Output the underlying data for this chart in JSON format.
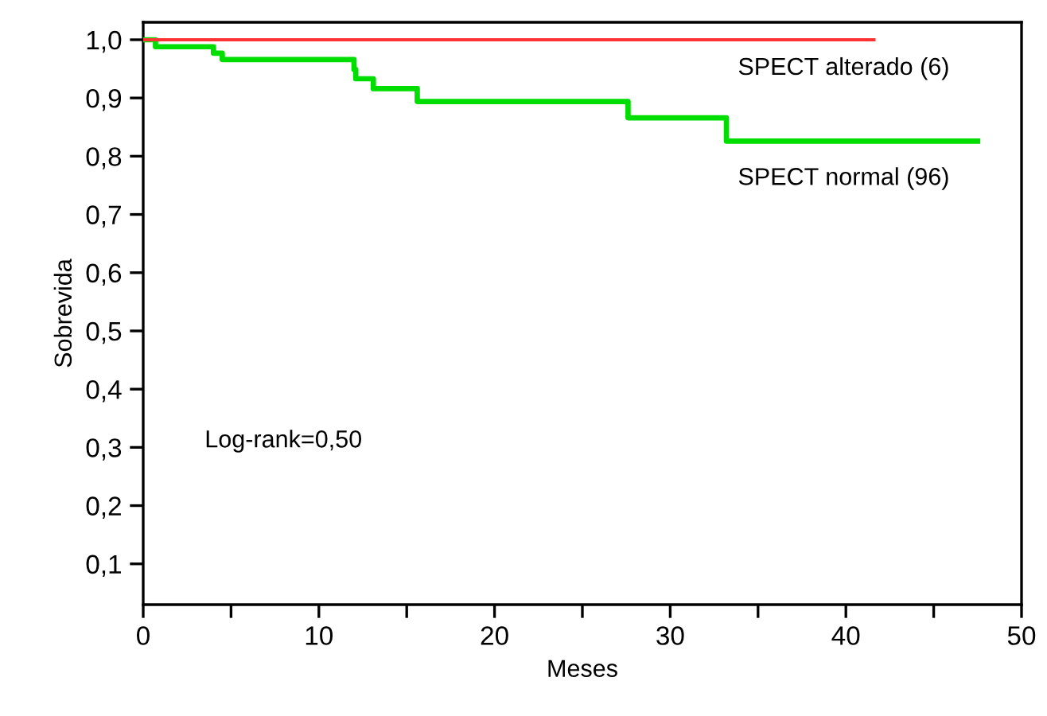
{
  "chart_data": {
    "type": "step",
    "xlabel": "Meses",
    "ylabel": "Sobrevida",
    "series": [
      {
        "name": "SPECT alterado (6)",
        "color": "#ff3333",
        "x": [
          0,
          41.6
        ],
        "values": [
          1.0,
          1.0
        ]
      },
      {
        "name": "SPECT normal (96)",
        "color": "#00dd00",
        "x": [
          0,
          0.7,
          4.0,
          4.5,
          12.0,
          12.1,
          13.1,
          15.6,
          27.6,
          33.2,
          47.5
        ],
        "values": [
          1.0,
          0.988,
          0.977,
          0.966,
          0.949,
          0.933,
          0.916,
          0.894,
          0.866,
          0.826,
          0.826
        ]
      }
    ],
    "annotations": [
      "Log-rank=0,50"
    ],
    "xlim": [
      0,
      50
    ],
    "ylim": [
      0.03,
      1.03
    ],
    "xticks": [
      0,
      {
        "value": 5,
        "label": null
      },
      10,
      {
        "value": 15,
        "label": null
      },
      20,
      {
        "value": 25,
        "label": null
      },
      30,
      {
        "value": 35,
        "label": null
      },
      40,
      {
        "value": 45,
        "label": null
      },
      50
    ],
    "yticks": [
      {
        "value": 0.1,
        "label": "0,1"
      },
      {
        "value": 0.2,
        "label": "0,2"
      },
      {
        "value": 0.3,
        "label": "0,3"
      },
      {
        "value": 0.4,
        "label": "0,4"
      },
      {
        "value": 0.5,
        "label": "0,5"
      },
      {
        "value": 0.6,
        "label": "0,6"
      },
      {
        "value": 0.7,
        "label": "0,7"
      },
      {
        "value": 0.8,
        "label": "0,8"
      },
      {
        "value": 0.9,
        "label": "0,9"
      },
      {
        "value": 1.0,
        "label": "1,0"
      }
    ],
    "grid": false,
    "legend": false
  }
}
